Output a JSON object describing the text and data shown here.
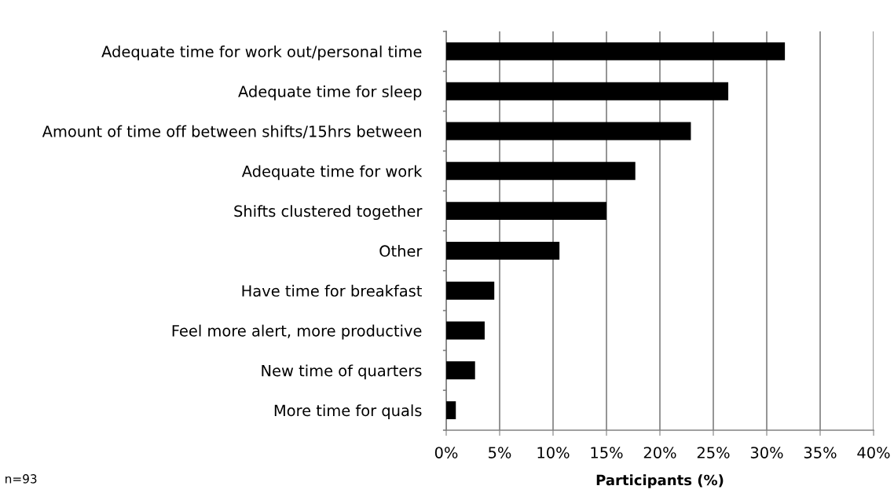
{
  "chart_data": {
    "type": "bar",
    "orientation": "horizontal",
    "xlabel": "Participants (%)",
    "categories": [
      "Adequate time for work out/personal time",
      "Adequate time for sleep",
      "Amount of time off between shifts/15hrs between",
      "Adequate time for work",
      "Shifts clustered together",
      "Other",
      "Have time for breakfast",
      "Feel more alert, more productive",
      "New time of quarters",
      "More time for quals"
    ],
    "values": [
      31.7,
      26.4,
      22.9,
      17.7,
      15.0,
      10.6,
      4.5,
      3.6,
      2.7,
      0.9
    ],
    "color": "#000000",
    "xlim": [
      0,
      40
    ],
    "xticks": [
      {
        "value": 0,
        "label": "0%"
      },
      {
        "value": 5,
        "label": "5%"
      },
      {
        "value": 10,
        "label": "10%"
      },
      {
        "value": 15,
        "label": "15%"
      },
      {
        "value": 20,
        "label": "20%"
      },
      {
        "value": 25,
        "label": "25%"
      },
      {
        "value": 30,
        "label": "30%"
      },
      {
        "value": 35,
        "label": "35%"
      },
      {
        "value": 40,
        "label": "40%"
      }
    ],
    "grid": "x",
    "legend": false,
    "annotations": [
      "n=93"
    ]
  }
}
